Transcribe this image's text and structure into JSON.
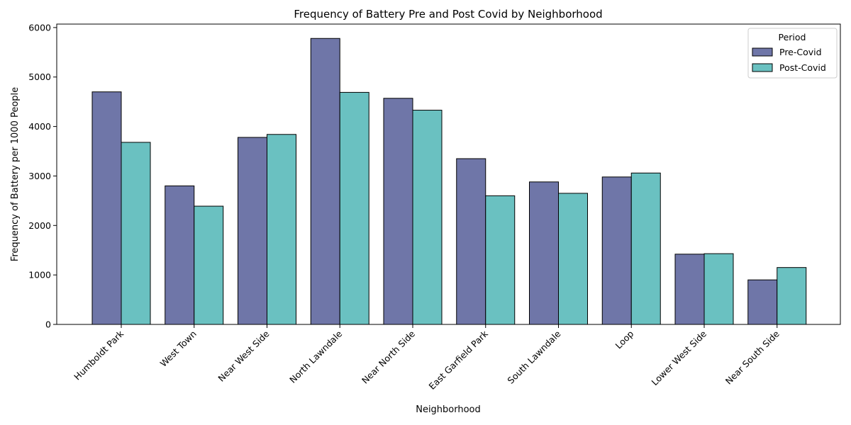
{
  "chart_data": {
    "type": "bar",
    "title": "Frequency of Battery Pre and Post Covid by Neighborhood",
    "xlabel": "Neighborhood",
    "ylabel": "Frequency of Battery per 1000 People",
    "categories": [
      "Humboldt Park",
      "West Town",
      "Near West Side",
      "North Lawndale",
      "Near North Side",
      "East Garfield Park",
      "South Lawndale",
      "Loop",
      "Lower West Side",
      "Near South Side"
    ],
    "series": [
      {
        "name": "Pre-Covid",
        "color": "#6f76a8",
        "values": [
          4700,
          2800,
          3780,
          5780,
          4570,
          3350,
          2880,
          2980,
          1420,
          900
        ]
      },
      {
        "name": "Post-Covid",
        "color": "#6ac1c1",
        "values": [
          3680,
          2390,
          3840,
          4690,
          4330,
          2600,
          2650,
          3060,
          1430,
          1150
        ]
      }
    ],
    "ylim": [
      0,
      6070
    ],
    "yticks": [
      0,
      1000,
      2000,
      3000,
      4000,
      5000,
      6000
    ],
    "legend": {
      "title": "Period",
      "position": "top-right"
    },
    "grid": false
  }
}
